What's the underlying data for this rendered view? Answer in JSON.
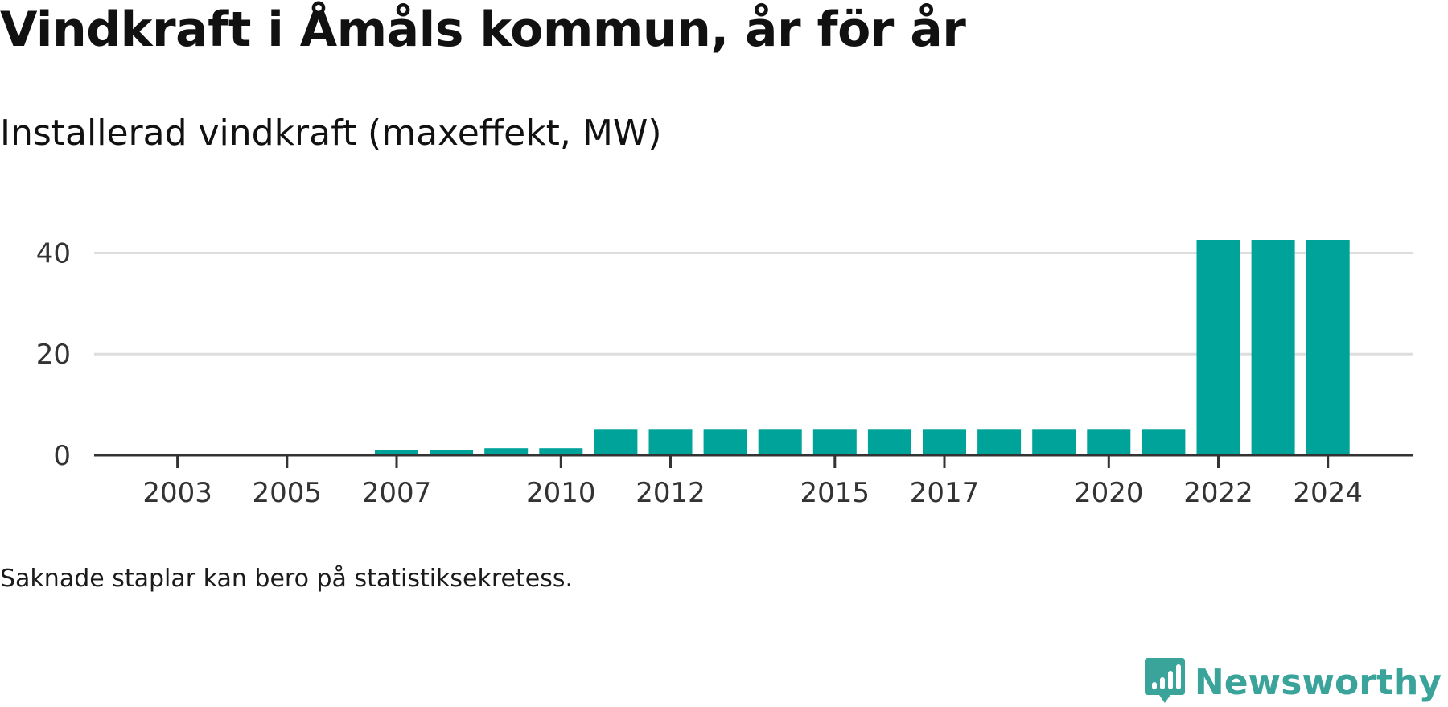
{
  "header": {
    "title": "Vindkraft i Åmåls kommun, år för år",
    "subtitle": "Installerad vindkraft (maxeffekt, MW)"
  },
  "footer": {
    "note": "Saknade staplar kan bero på statistiksekretess."
  },
  "brand": {
    "name": "Newsworthy",
    "color": "#3aa39a",
    "icon": "bar-chart-speech-bubble-icon"
  },
  "chart_data": {
    "type": "bar",
    "title": "Vindkraft i Åmåls kommun, år för år",
    "subtitle": "Installerad vindkraft (maxeffekt, MW)",
    "xlabel": "",
    "ylabel": "",
    "categories": [
      "2002",
      "2003",
      "2004",
      "2005",
      "2006",
      "2007",
      "2008",
      "2009",
      "2010",
      "2011",
      "2012",
      "2013",
      "2014",
      "2015",
      "2016",
      "2017",
      "2018",
      "2019",
      "2020",
      "2021",
      "2022",
      "2023",
      "2024"
    ],
    "values": [
      0,
      0,
      0,
      0,
      0,
      1,
      1,
      1.4,
      1.4,
      5.2,
      5.2,
      5.2,
      5.2,
      5.2,
      5.2,
      5.2,
      5.2,
      5.2,
      5.2,
      5.2,
      42.6,
      42.6,
      42.6
    ],
    "x_tick_labels": [
      "2003",
      "2005",
      "2007",
      "2010",
      "2012",
      "2015",
      "2017",
      "2020",
      "2022",
      "2024"
    ],
    "y_ticks": [
      0,
      20,
      40
    ],
    "ylim": [
      0,
      45
    ],
    "grid": true,
    "bar_color": "#00a39a",
    "legend": "none"
  }
}
